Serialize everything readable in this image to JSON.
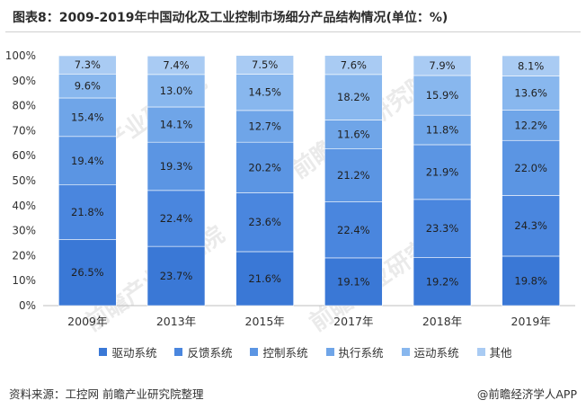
{
  "title": "图表8：2009-2019年中国动化及工业控制市场细分产品结构情况(单位：%)",
  "footer": {
    "source": "资料来源：工控网 前瞻产业研究院整理",
    "credit": "@前瞻经济学人APP"
  },
  "colors": {
    "驱动系统": "#3a78d6",
    "反馈系统": "#4a86de",
    "控制系统": "#5b95e3",
    "执行系统": "#6fa5e8",
    "运动系统": "#88b7ee",
    "其他": "#a9cbf3"
  },
  "chart_data": {
    "type": "bar",
    "stacked": true,
    "percent": true,
    "categories": [
      "2009年",
      "2013年",
      "2015年",
      "2017年",
      "2018年",
      "2019年"
    ],
    "series": [
      {
        "name": "驱动系统",
        "values": [
          26.5,
          23.7,
          21.6,
          19.1,
          19.2,
          19.8
        ]
      },
      {
        "name": "反馈系统",
        "values": [
          21.8,
          22.4,
          23.6,
          22.4,
          23.3,
          24.3
        ]
      },
      {
        "name": "控制系统",
        "values": [
          19.4,
          19.3,
          20.2,
          21.2,
          21.9,
          22.0
        ]
      },
      {
        "name": "执行系统",
        "values": [
          15.4,
          14.1,
          12.7,
          11.6,
          11.8,
          12.2
        ]
      },
      {
        "name": "运动系统",
        "values": [
          9.6,
          13.0,
          14.5,
          18.2,
          15.9,
          13.6
        ]
      },
      {
        "name": "其他",
        "values": [
          7.3,
          7.4,
          7.5,
          7.6,
          7.9,
          8.1
        ]
      }
    ],
    "yticks": [
      "0%",
      "10%",
      "20%",
      "30%",
      "40%",
      "50%",
      "60%",
      "70%",
      "80%",
      "90%",
      "100%"
    ],
    "ylim": [
      0,
      100
    ],
    "xlabel": "",
    "ylabel": "",
    "legend_position": "bottom",
    "grid": false
  }
}
